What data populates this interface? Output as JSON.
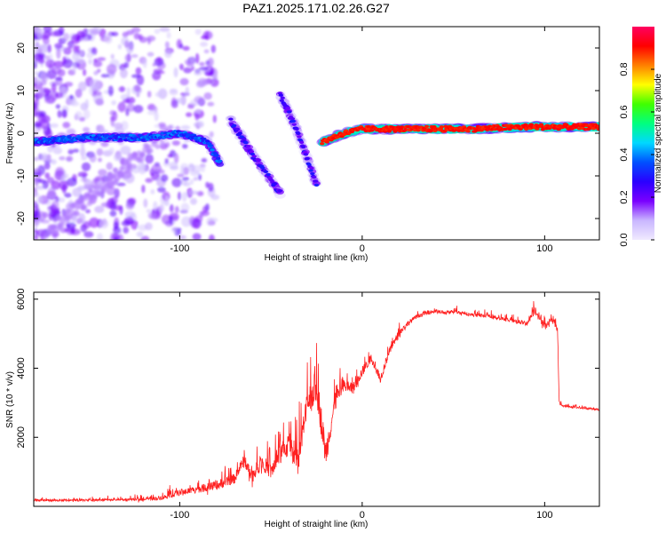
{
  "title": "PAZ1.2025.171.02.26.G27",
  "chart_data": [
    {
      "type": "heatmap",
      "xlabel": "Height of straight line (km)",
      "ylabel": "Frequency (Hz)",
      "xlim": [
        -180,
        130
      ],
      "ylim": [
        -25,
        25
      ],
      "x_ticks": [
        "-100",
        "0",
        "100"
      ],
      "y_ticks": [
        "-20",
        "-10",
        "0",
        "10",
        "20"
      ],
      "colorbar": {
        "label": "Normalized spectral amplitude",
        "range": [
          0,
          1
        ],
        "ticks": [
          "0.0",
          "0.2",
          "0.4",
          "0.6",
          "0.8"
        ],
        "colormap": [
          "#f0eaff",
          "#c9b6ff",
          "#7a00ff",
          "#2a00ff",
          "#0050ff",
          "#00d8ff",
          "#00ff80",
          "#40ff00",
          "#ffff00",
          "#ff8000",
          "#ff0000",
          "#ff0060"
        ]
      },
      "ridge_segments": [
        {
          "x": [
            -180,
            -150,
            -120,
            -100,
            -85,
            -78
          ],
          "y": [
            -2,
            -1,
            -1,
            0,
            -2,
            -7
          ],
          "amplitude": 0.35
        },
        {
          "x": [
            -72,
            -60,
            -45
          ],
          "y": [
            3,
            -5,
            -14
          ],
          "amplitude": 0.25
        },
        {
          "x": [
            -45,
            -35,
            -25
          ],
          "y": [
            9,
            0,
            -12
          ],
          "amplitude": 0.25
        },
        {
          "x": [
            -22,
            -10,
            0,
            20,
            60,
            90,
            130
          ],
          "y": [
            -2,
            0,
            1,
            1,
            1,
            1.5,
            1.5
          ],
          "amplitude": 0.9
        }
      ]
    },
    {
      "type": "line",
      "xlabel": "Height of straight line (km)",
      "ylabel": "SNR (10 * v/v)",
      "xlim": [
        -180,
        130
      ],
      "ylim": [
        0,
        6200
      ],
      "x_ticks": [
        "-100",
        "0",
        "100"
      ],
      "y_ticks": [
        "2000",
        "4000",
        "6000"
      ],
      "series": [
        {
          "color": "#ff2020",
          "x": [
            -180,
            -160,
            -140,
            -120,
            -110,
            -100,
            -90,
            -80,
            -70,
            -65,
            -60,
            -55,
            -50,
            -45,
            -40,
            -35,
            -30,
            -25,
            -20,
            -15,
            -10,
            -5,
            0,
            5,
            10,
            15,
            20,
            25,
            30,
            35,
            40,
            45,
            50,
            60,
            70,
            80,
            90,
            95,
            100,
            105,
            107,
            108,
            110,
            120,
            130
          ],
          "y": [
            180,
            170,
            190,
            200,
            250,
            400,
            500,
            600,
            800,
            1300,
            900,
            1300,
            1000,
            1500,
            1800,
            1300,
            3000,
            3500,
            1500,
            3000,
            3500,
            3400,
            3900,
            4300,
            3700,
            4500,
            5000,
            5300,
            5500,
            5600,
            5650,
            5600,
            5650,
            5550,
            5500,
            5400,
            5300,
            5700,
            5200,
            5400,
            5100,
            3000,
            2900,
            2850,
            2800
          ],
          "noise": [
            60,
            50,
            60,
            80,
            120,
            180,
            220,
            260,
            300,
            350,
            400,
            450,
            450,
            600,
            700,
            800,
            900,
            1000,
            800,
            500,
            400,
            350,
            300,
            260,
            240,
            220,
            200,
            150,
            120,
            110,
            100,
            100,
            100,
            100,
            100,
            110,
            130,
            250,
            200,
            200,
            200,
            100,
            60,
            50,
            50
          ]
        }
      ]
    }
  ]
}
